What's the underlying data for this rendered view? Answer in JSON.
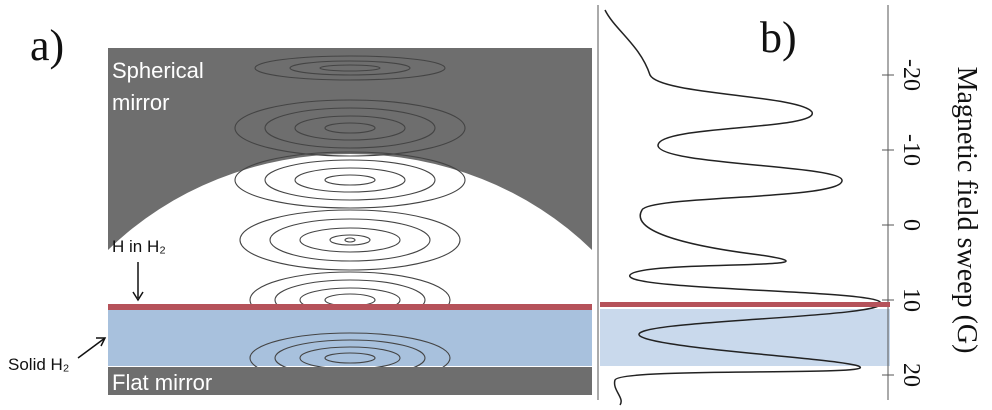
{
  "panel_a": {
    "label": "a)",
    "top_mirror": "Spherical",
    "top_mirror_line2": "mirror",
    "bottom_mirror": "Flat mirror",
    "h_label": "H in H₂",
    "solid_label": "Solid H₂"
  },
  "panel_b": {
    "label": "b)",
    "axis_title": "Magnetic field sweep (G)",
    "tick_labels": [
      "-20",
      "-10",
      "0",
      "10",
      "20"
    ]
  }
}
